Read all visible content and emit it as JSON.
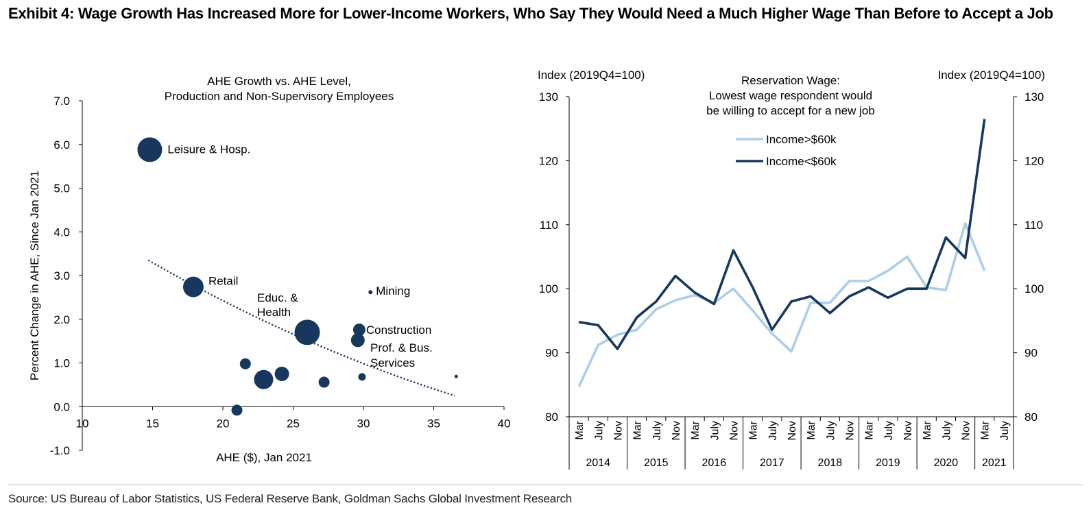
{
  "exhibit_title": "Exhibit 4: Wage Growth Has Increased More for Lower-Income Workers, Who Say They Would Need a Much Higher Wage Than Before to Accept a Job",
  "source": "Source: US Bureau of Labor Statistics, US Federal Reserve Bank, Goldman Sachs Global Investment Research",
  "colors": {
    "navy": "#17375e",
    "light_blue": "#aecde8",
    "axis": "#000000"
  },
  "chart_data": [
    {
      "type": "scatter",
      "title_lines": [
        "AHE Growth vs. AHE Level,",
        "Production and Non-Supervisory Employees"
      ],
      "xlabel": "AHE ($), Jan 2021",
      "ylabel": "Percent  Change in AHE, Since Jan 2021",
      "xlim": [
        10,
        40
      ],
      "ylim": [
        -1.0,
        7.0
      ],
      "xticks": [
        "10",
        "15",
        "20",
        "25",
        "30",
        "35",
        "40"
      ],
      "yticks": [
        "-1.0",
        "0.0",
        "1.0",
        "2.0",
        "3.0",
        "4.0",
        "5.0",
        "6.0",
        "7.0"
      ],
      "points": [
        {
          "label": "Leisure & Hosp.",
          "x": 14.8,
          "y": 5.88,
          "size": 3.6
        },
        {
          "label": "Retail",
          "x": 17.9,
          "y": 2.74,
          "size": 3.0
        },
        {
          "label": "Educ. & Health",
          "x": 26.0,
          "y": 1.7,
          "size": 3.7
        },
        {
          "label": "Mining",
          "x": 30.5,
          "y": 2.62,
          "size": 0.6
        },
        {
          "label": "Construction",
          "x": 29.7,
          "y": 1.76,
          "size": 1.8
        },
        {
          "label": "Prof. & Bus. Services",
          "x": 29.6,
          "y": 1.52,
          "size": 2.0
        },
        {
          "label": "",
          "x": 21.6,
          "y": 0.98,
          "size": 1.6
        },
        {
          "label": "",
          "x": 22.9,
          "y": 0.62,
          "size": 2.8
        },
        {
          "label": "",
          "x": 24.2,
          "y": 0.75,
          "size": 2.1
        },
        {
          "label": "",
          "x": 27.2,
          "y": 0.56,
          "size": 1.6
        },
        {
          "label": "",
          "x": 29.9,
          "y": 0.68,
          "size": 1.1
        },
        {
          "label": "",
          "x": 36.6,
          "y": 0.69,
          "size": 0.5
        },
        {
          "label": "",
          "x": 21.0,
          "y": -0.08,
          "size": 1.6
        }
      ],
      "trendline": {
        "x0": 14.7,
        "y0": 3.35,
        "x1": 36.5,
        "y1": 0.25,
        "curvature": 1.2
      }
    },
    {
      "type": "line",
      "title_lines": [
        "Reservation Wage:",
        "Lowest wage respondent would",
        "be willing to accept for a new job"
      ],
      "ylabel_left": "Index (2019Q4=100)",
      "ylabel_right": "Index (2019Q4=100)",
      "ylim": [
        80,
        130
      ],
      "yticks": [
        "80",
        "90",
        "100",
        "110",
        "120",
        "130"
      ],
      "categories": [
        "Mar",
        "July",
        "Nov",
        "Mar",
        "July",
        "Nov",
        "Mar",
        "July",
        "Nov",
        "Mar",
        "July",
        "Nov",
        "Mar",
        "July",
        "Nov",
        "Mar",
        "July",
        "Nov",
        "Mar",
        "July",
        "Nov",
        "Mar",
        "July"
      ],
      "years": [
        "2014",
        "2015",
        "2016",
        "2017",
        "2018",
        "2019",
        "2020",
        "2021"
      ],
      "series": [
        {
          "name": "Income>$60k",
          "color": "#aecde8",
          "values": [
            84.7,
            91.2,
            92.8,
            93.6,
            96.8,
            98.2,
            99.0,
            97.8,
            100.0,
            96.6,
            93.0,
            90.2,
            97.8,
            97.8,
            101.2,
            101.2,
            102.8,
            105.0,
            100.2,
            99.8,
            110.2,
            102.8,
            null
          ]
        },
        {
          "name": "Income<$60k",
          "color": "#17375e",
          "values": [
            94.8,
            94.3,
            90.6,
            95.5,
            98.0,
            102.0,
            99.4,
            97.6,
            106.0,
            100.2,
            93.6,
            98.0,
            98.8,
            96.2,
            98.8,
            100.2,
            98.6,
            100.0,
            100.0,
            108.0,
            104.8,
            126.5,
            null
          ]
        }
      ],
      "legend_position": "top-center"
    }
  ]
}
